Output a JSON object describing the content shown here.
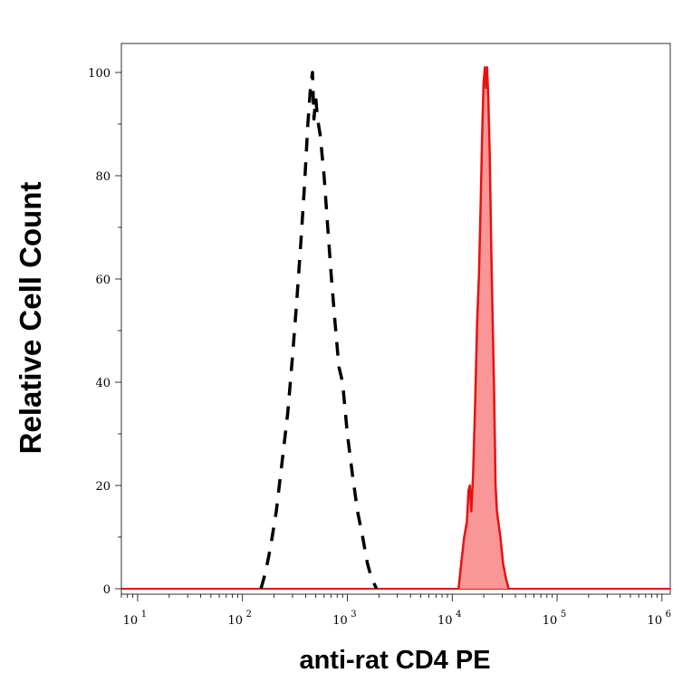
{
  "chart_data": {
    "type": "area",
    "xlabel": "anti-rat CD4 PE",
    "ylabel": "Relative Cell Count",
    "x_scale": "log",
    "xlim": [
      7,
      1200000
    ],
    "ylim": [
      0,
      100
    ],
    "x_ticks": [
      {
        "base": "10",
        "exp": "1",
        "value": 10
      },
      {
        "base": "10",
        "exp": "2",
        "value": 100
      },
      {
        "base": "10",
        "exp": "3",
        "value": 1000
      },
      {
        "base": "10",
        "exp": "4",
        "value": 10000
      },
      {
        "base": "10",
        "exp": "5",
        "value": 100000
      },
      {
        "base": "10",
        "exp": "6",
        "value": 1000000
      }
    ],
    "y_ticks": [
      "0",
      "20",
      "40",
      "60",
      "80",
      "100"
    ],
    "y_tick_values": [
      0,
      20,
      40,
      60,
      80,
      100
    ],
    "grid": false,
    "series": [
      {
        "style": "dashed",
        "color": "#000000",
        "fill": "none",
        "points": [
          [
            150,
            0
          ],
          [
            165,
            3
          ],
          [
            185,
            8
          ],
          [
            210,
            15
          ],
          [
            240,
            25
          ],
          [
            270,
            34
          ],
          [
            300,
            45
          ],
          [
            330,
            56
          ],
          [
            360,
            67
          ],
          [
            390,
            78
          ],
          [
            420,
            90
          ],
          [
            445,
            97
          ],
          [
            465,
            100
          ],
          [
            480,
            91
          ],
          [
            500,
            95
          ],
          [
            520,
            91
          ],
          [
            550,
            88
          ],
          [
            600,
            80
          ],
          [
            650,
            70
          ],
          [
            700,
            61
          ],
          [
            760,
            52
          ],
          [
            830,
            43
          ],
          [
            900,
            40
          ],
          [
            1000,
            30
          ],
          [
            1120,
            22
          ],
          [
            1250,
            15
          ],
          [
            1400,
            10
          ],
          [
            1550,
            5
          ],
          [
            1700,
            2
          ],
          [
            1900,
            0
          ]
        ]
      },
      {
        "style": "solid",
        "color": "#e8110f",
        "fill": "#f99697",
        "points": [
          [
            11500,
            0
          ],
          [
            12200,
            5
          ],
          [
            13000,
            10
          ],
          [
            13800,
            13
          ],
          [
            14300,
            19
          ],
          [
            14700,
            20
          ],
          [
            15200,
            15
          ],
          [
            15800,
            22
          ],
          [
            16500,
            35
          ],
          [
            17300,
            52
          ],
          [
            18000,
            61
          ],
          [
            18700,
            75
          ],
          [
            19300,
            88
          ],
          [
            19900,
            98
          ],
          [
            20500,
            101
          ],
          [
            21000,
            97
          ],
          [
            21500,
            101
          ],
          [
            22100,
            95
          ],
          [
            22800,
            84
          ],
          [
            23600,
            65
          ],
          [
            24300,
            52
          ],
          [
            25000,
            40
          ],
          [
            25900,
            20
          ],
          [
            26700,
            15
          ],
          [
            27500,
            13
          ],
          [
            28800,
            10
          ],
          [
            30500,
            5
          ],
          [
            32500,
            2
          ],
          [
            34500,
            0
          ]
        ]
      }
    ]
  }
}
